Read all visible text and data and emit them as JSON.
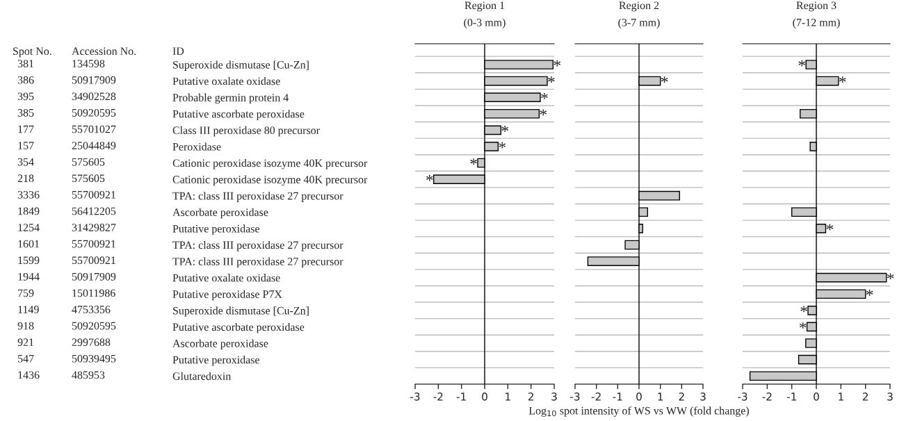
{
  "chart_data": [
    {
      "type": "other",
      "annotations": [
        "Spot No.",
        "Accession No.",
        "ID",
        "381",
        "134598",
        "386",
        "50917909",
        "395",
        "34902528",
        "385",
        "50920595",
        "177",
        "55701027",
        "157",
        "25044849",
        "354",
        "575605",
        "218",
        "575605",
        "3336",
        "55700921",
        "1849",
        "56412205",
        "1254",
        "31429827",
        "1601",
        "55700921",
        "1599",
        "55700921",
        "1944",
        "50917909",
        "759",
        "15011986",
        "1149",
        "4753356",
        "918",
        "50920595",
        "921",
        "2997688",
        "547",
        "50939495",
        "1436",
        "485953"
      ]
    },
    {
      "type": "bar",
      "orientation": "horizontal",
      "title": "Region 1",
      "subtitle": "(0-3 mm)",
      "categories": [
        "Superoxide dismutase [Cu-Zn]",
        "Putative oxalate oxidase",
        "Probable germin protein 4",
        "Putative ascorbate peroxidase",
        "Class III peroxidase 80 precursor",
        "Peroxidase",
        "Cationic peroxidase isozyme 40K precursor",
        "Cationic peroxidase isozyme 40K precursor",
        "TPA: class III peroxidase 27 precursor",
        "Ascorbate peroxidase",
        "Putative peroxidase",
        "TPA: class III peroxidase 27 precursor",
        "TPA: class III peroxidase 27 precursor",
        "Putative oxalate oxidase",
        "Putative peroxidase P7X",
        "Superoxide dismutase [Cu-Zn]",
        "Putative ascorbate peroxidase",
        "Ascorbate peroxidase",
        "Putative peroxidase",
        "Glutaredoxin"
      ],
      "values": [
        2.95,
        2.7,
        2.4,
        2.35,
        0.7,
        0.58,
        -0.3,
        -2.2,
        null,
        null,
        null,
        null,
        null,
        null,
        null,
        null,
        null,
        null,
        null,
        null
      ],
      "value_labels": [
        "*",
        "*",
        "*",
        "*",
        "*",
        "*",
        "*",
        "*",
        null,
        null,
        null,
        null,
        null,
        null,
        null,
        null,
        null,
        null,
        null,
        null
      ],
      "color": "#c8c8c8",
      "xlim": [
        -3,
        3
      ],
      "xticks": [
        -3,
        -2,
        -1,
        0,
        1,
        2,
        3
      ],
      "grid": "y",
      "ref_lines": [
        {
          "axis": "x",
          "value": 0
        }
      ]
    },
    {
      "type": "bar",
      "orientation": "horizontal",
      "title": "Region 2",
      "subtitle": "(3-7 mm)",
      "xlabel": "Log$_{10}$ spot intensity of WS vs WW (fold change)",
      "categories": [
        null,
        null,
        null,
        null,
        null,
        null,
        null,
        null,
        null,
        null,
        null,
        null,
        null,
        null,
        null,
        null,
        null,
        null,
        null,
        null
      ],
      "values": [
        null,
        1.0,
        null,
        null,
        null,
        null,
        null,
        null,
        1.9,
        0.4,
        0.17,
        -0.65,
        -2.4,
        null,
        null,
        null,
        null,
        null,
        null,
        null
      ],
      "value_labels": [
        null,
        "*",
        null,
        null,
        null,
        null,
        null,
        null,
        null,
        null,
        null,
        null,
        null,
        null,
        null,
        null,
        null,
        null,
        null,
        null
      ],
      "color": "#c8c8c8",
      "xlim": [
        -3,
        3
      ],
      "xticks": [
        -3,
        -2,
        -1,
        0,
        1,
        2,
        3
      ],
      "grid": "y",
      "tick_labels": "x",
      "ref_lines": [
        {
          "axis": "x",
          "value": 0
        }
      ]
    },
    {
      "type": "bar",
      "orientation": "horizontal",
      "title": "Region 3",
      "subtitle": "(7-12 mm)",
      "categories": [
        null,
        null,
        null,
        null,
        null,
        null,
        null,
        null,
        null,
        null,
        null,
        null,
        null,
        null,
        null,
        null,
        null,
        null,
        null,
        null
      ],
      "values": [
        -0.42,
        0.9,
        null,
        -0.66,
        null,
        -0.25,
        null,
        null,
        null,
        -1.0,
        0.38,
        null,
        null,
        2.85,
        2.0,
        -0.34,
        -0.38,
        -0.43,
        -0.72,
        -2.7
      ],
      "value_labels": [
        "*",
        "*",
        null,
        null,
        null,
        null,
        null,
        null,
        null,
        null,
        "*",
        null,
        null,
        "*",
        "*",
        "*",
        "*",
        null,
        null,
        null
      ],
      "color": "#c8c8c8",
      "xlim": [
        -3,
        3
      ],
      "xticks": [
        -3,
        -2,
        -1,
        0,
        1,
        2,
        3
      ],
      "grid": "y",
      "tick_labels": "x",
      "ref_lines": [
        {
          "axis": "x",
          "value": 0
        }
      ]
    }
  ]
}
